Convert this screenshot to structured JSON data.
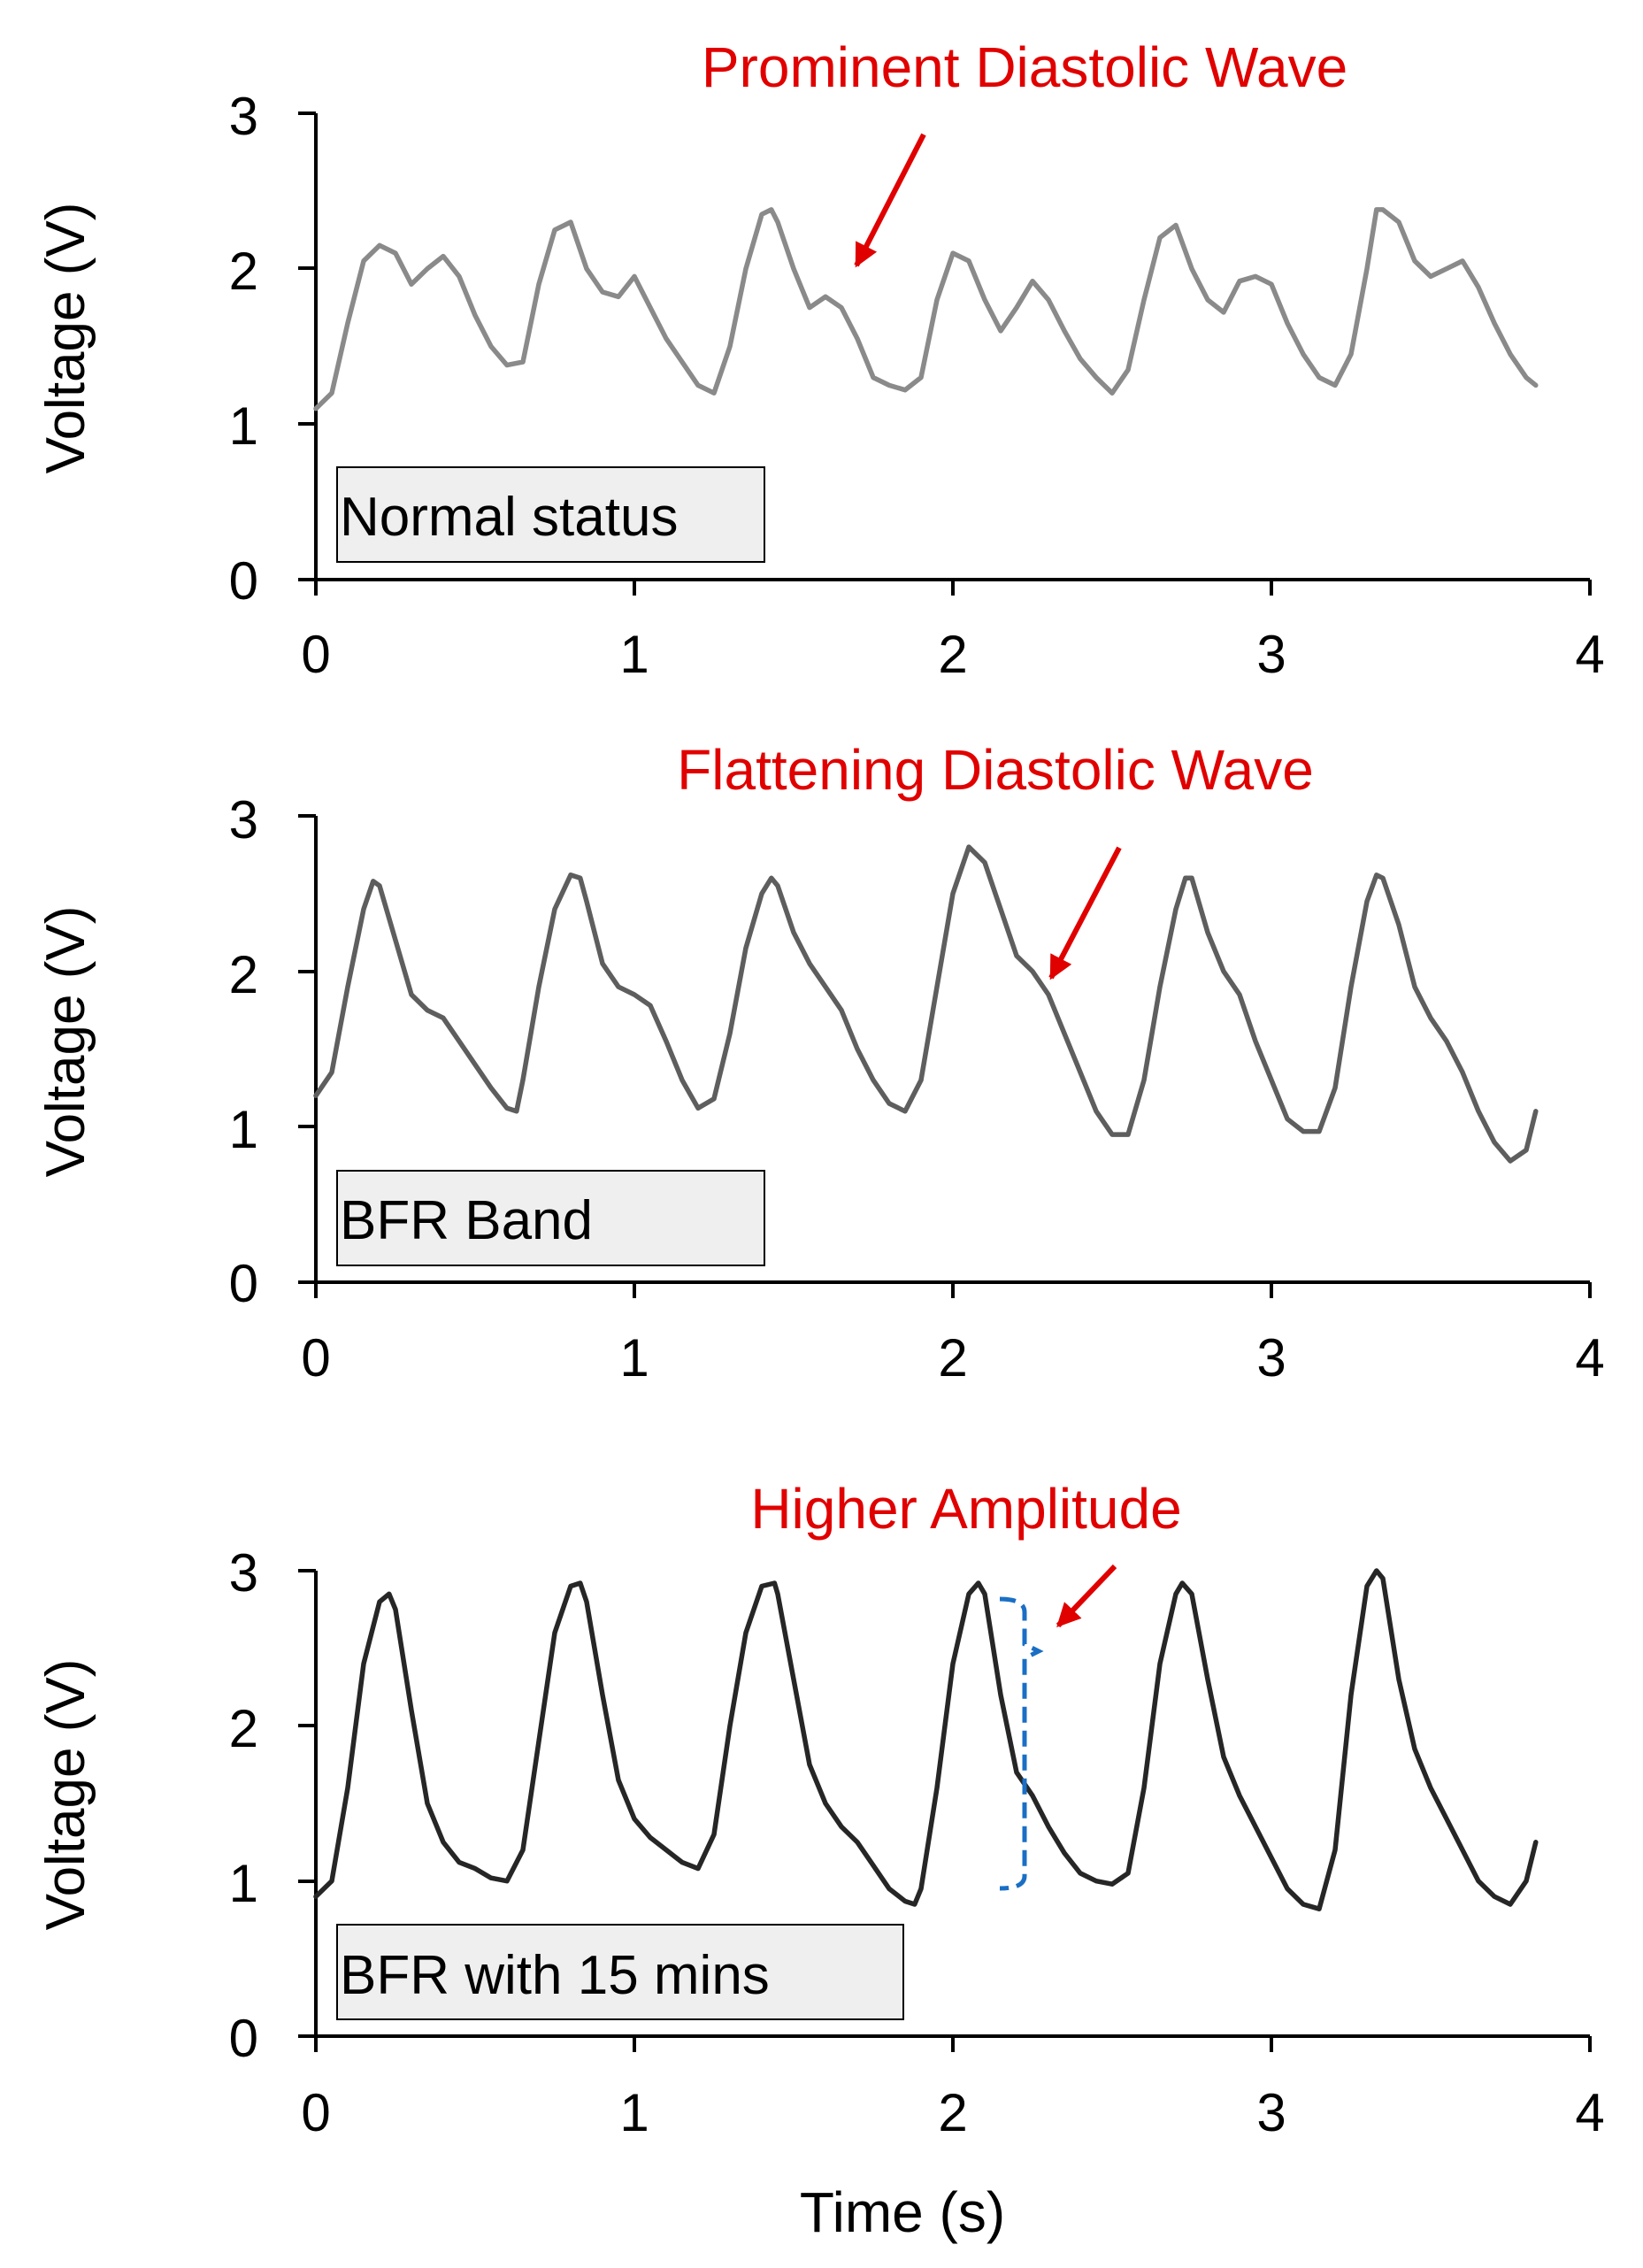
{
  "xlabel": "Time (s)",
  "chart_data": [
    {
      "type": "line",
      "title": "",
      "ylabel": "Voltage (V)",
      "xlabel": "",
      "xlim": [
        0,
        4
      ],
      "ylim": [
        0,
        3
      ],
      "xticks": [
        "0",
        "1",
        "2",
        "3",
        "4"
      ],
      "yticks": [
        "0",
        "1",
        "2",
        "3"
      ],
      "grid": false,
      "status_label": "Normal status",
      "annotation": "Prominent Diastolic Wave",
      "series": [
        {
          "name": "Normal status",
          "color": "#8a8a8a",
          "x": [
            0.0,
            0.05,
            0.1,
            0.15,
            0.2,
            0.25,
            0.3,
            0.35,
            0.4,
            0.45,
            0.5,
            0.55,
            0.6,
            0.65,
            0.7,
            0.75,
            0.8,
            0.85,
            0.9,
            0.95,
            1.0,
            1.05,
            1.1,
            1.15,
            1.2,
            1.25,
            1.3,
            1.35,
            1.4,
            1.43,
            1.45,
            1.5,
            1.55,
            1.6,
            1.65,
            1.7,
            1.75,
            1.8,
            1.85,
            1.9,
            1.95,
            2.0,
            2.05,
            2.1,
            2.15,
            2.2,
            2.25,
            2.3,
            2.35,
            2.4,
            2.45,
            2.5,
            2.55,
            2.6,
            2.65,
            2.7,
            2.75,
            2.8,
            2.85,
            2.9,
            2.95,
            3.0,
            3.05,
            3.1,
            3.15,
            3.2,
            3.25,
            3.3,
            3.33,
            3.35,
            3.4,
            3.45,
            3.5,
            3.55,
            3.6,
            3.65,
            3.7,
            3.75,
            3.8,
            3.83
          ],
          "y": [
            1.1,
            1.2,
            1.65,
            2.05,
            2.15,
            2.1,
            1.9,
            2.0,
            2.08,
            1.95,
            1.7,
            1.5,
            1.38,
            1.4,
            1.9,
            2.25,
            2.3,
            2.0,
            1.85,
            1.82,
            1.95,
            1.75,
            1.55,
            1.4,
            1.25,
            1.2,
            1.5,
            2.0,
            2.35,
            2.38,
            2.3,
            2.0,
            1.75,
            1.82,
            1.75,
            1.55,
            1.3,
            1.25,
            1.22,
            1.3,
            1.8,
            2.1,
            2.05,
            1.8,
            1.6,
            1.75,
            1.92,
            1.8,
            1.6,
            1.42,
            1.3,
            1.2,
            1.35,
            1.8,
            2.2,
            2.28,
            2.0,
            1.8,
            1.72,
            1.92,
            1.95,
            1.9,
            1.65,
            1.45,
            1.3,
            1.25,
            1.45,
            2.0,
            2.38,
            2.38,
            2.3,
            2.05,
            1.95,
            2.0,
            2.05,
            1.88,
            1.65,
            1.45,
            1.3,
            1.25
          ]
        }
      ]
    },
    {
      "type": "line",
      "title": "",
      "ylabel": "Voltage (V)",
      "xlabel": "",
      "xlim": [
        0,
        4
      ],
      "ylim": [
        0,
        3
      ],
      "xticks": [
        "0",
        "1",
        "2",
        "3",
        "4"
      ],
      "yticks": [
        "0",
        "1",
        "2",
        "3"
      ],
      "grid": false,
      "status_label": "BFR Band",
      "annotation": "Flattening Diastolic Wave",
      "series": [
        {
          "name": "BFR Band",
          "color": "#5e5e5e",
          "x": [
            0.0,
            0.05,
            0.1,
            0.15,
            0.18,
            0.2,
            0.25,
            0.3,
            0.35,
            0.4,
            0.45,
            0.5,
            0.55,
            0.6,
            0.63,
            0.65,
            0.7,
            0.75,
            0.8,
            0.83,
            0.85,
            0.9,
            0.95,
            1.0,
            1.05,
            1.1,
            1.15,
            1.2,
            1.25,
            1.3,
            1.35,
            1.4,
            1.43,
            1.45,
            1.5,
            1.55,
            1.6,
            1.65,
            1.7,
            1.75,
            1.8,
            1.85,
            1.9,
            1.95,
            2.0,
            2.05,
            2.1,
            2.15,
            2.2,
            2.25,
            2.3,
            2.35,
            2.4,
            2.45,
            2.5,
            2.55,
            2.6,
            2.65,
            2.7,
            2.73,
            2.75,
            2.8,
            2.85,
            2.9,
            2.95,
            3.0,
            3.05,
            3.1,
            3.15,
            3.2,
            3.25,
            3.3,
            3.33,
            3.35,
            3.4,
            3.45,
            3.5,
            3.55,
            3.6,
            3.65,
            3.7,
            3.75,
            3.8,
            3.83
          ],
          "y": [
            1.2,
            1.35,
            1.9,
            2.4,
            2.58,
            2.55,
            2.2,
            1.85,
            1.75,
            1.7,
            1.55,
            1.4,
            1.25,
            1.12,
            1.1,
            1.3,
            1.9,
            2.4,
            2.62,
            2.6,
            2.45,
            2.05,
            1.9,
            1.85,
            1.78,
            1.55,
            1.3,
            1.12,
            1.18,
            1.6,
            2.15,
            2.5,
            2.6,
            2.55,
            2.25,
            2.05,
            1.9,
            1.75,
            1.5,
            1.3,
            1.15,
            1.1,
            1.3,
            1.9,
            2.5,
            2.8,
            2.7,
            2.4,
            2.1,
            2.0,
            1.85,
            1.6,
            1.35,
            1.1,
            0.95,
            0.95,
            1.3,
            1.9,
            2.4,
            2.6,
            2.6,
            2.25,
            2.0,
            1.85,
            1.55,
            1.3,
            1.05,
            0.97,
            0.97,
            1.25,
            1.9,
            2.45,
            2.62,
            2.6,
            2.3,
            1.9,
            1.7,
            1.55,
            1.35,
            1.1,
            0.9,
            0.78,
            0.85,
            1.1
          ]
        }
      ]
    },
    {
      "type": "line",
      "title": "",
      "ylabel": "Voltage (V)",
      "xlabel": "Time (s)",
      "xlim": [
        0,
        4
      ],
      "ylim": [
        0,
        3
      ],
      "xticks": [
        "0",
        "1",
        "2",
        "3",
        "4"
      ],
      "yticks": [
        "0",
        "1",
        "2",
        "3"
      ],
      "grid": false,
      "status_label": "BFR with 15 mins",
      "annotation": "Higher Amplitude",
      "series": [
        {
          "name": "BFR with 15 mins",
          "color": "#262626",
          "x": [
            0.0,
            0.05,
            0.1,
            0.15,
            0.2,
            0.23,
            0.25,
            0.3,
            0.35,
            0.4,
            0.45,
            0.5,
            0.55,
            0.6,
            0.65,
            0.7,
            0.75,
            0.8,
            0.83,
            0.85,
            0.9,
            0.95,
            1.0,
            1.05,
            1.1,
            1.15,
            1.2,
            1.25,
            1.3,
            1.35,
            1.4,
            1.44,
            1.45,
            1.5,
            1.55,
            1.6,
            1.65,
            1.7,
            1.75,
            1.8,
            1.85,
            1.88,
            1.9,
            1.95,
            2.0,
            2.05,
            2.08,
            2.1,
            2.15,
            2.2,
            2.25,
            2.3,
            2.35,
            2.4,
            2.45,
            2.5,
            2.55,
            2.6,
            2.65,
            2.7,
            2.72,
            2.75,
            2.8,
            2.85,
            2.9,
            2.95,
            3.0,
            3.05,
            3.1,
            3.15,
            3.2,
            3.25,
            3.3,
            3.33,
            3.35,
            3.4,
            3.45,
            3.5,
            3.55,
            3.6,
            3.65,
            3.7,
            3.75,
            3.8,
            3.83
          ],
          "y": [
            0.9,
            1.0,
            1.6,
            2.4,
            2.8,
            2.85,
            2.75,
            2.1,
            1.5,
            1.25,
            1.12,
            1.08,
            1.02,
            1.0,
            1.2,
            1.9,
            2.6,
            2.9,
            2.92,
            2.8,
            2.2,
            1.65,
            1.4,
            1.28,
            1.2,
            1.12,
            1.08,
            1.3,
            2.0,
            2.6,
            2.9,
            2.92,
            2.85,
            2.3,
            1.75,
            1.5,
            1.35,
            1.25,
            1.1,
            0.95,
            0.87,
            0.85,
            0.95,
            1.6,
            2.4,
            2.85,
            2.92,
            2.85,
            2.2,
            1.7,
            1.55,
            1.35,
            1.18,
            1.05,
            1.0,
            0.98,
            1.05,
            1.6,
            2.4,
            2.85,
            2.92,
            2.85,
            2.3,
            1.8,
            1.55,
            1.35,
            1.15,
            0.95,
            0.85,
            0.82,
            1.2,
            2.2,
            2.9,
            3.0,
            2.95,
            2.3,
            1.85,
            1.6,
            1.4,
            1.2,
            1.0,
            0.9,
            0.85,
            1.0,
            1.25
          ]
        }
      ]
    }
  ]
}
